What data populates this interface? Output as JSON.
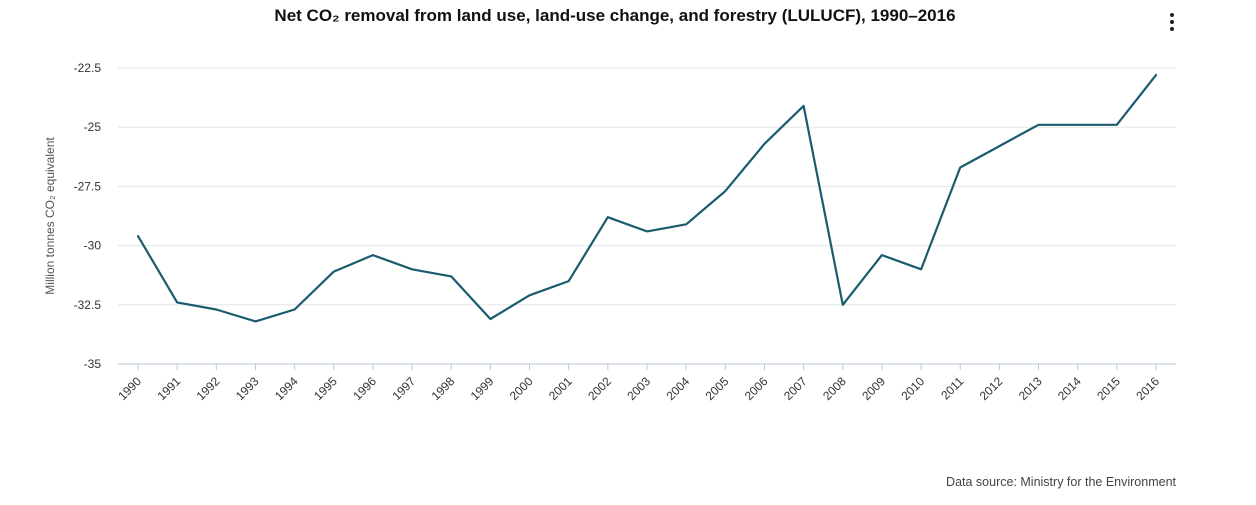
{
  "header": {
    "title": "Net CO₂ removal from land use, land-use change, and forestry (LULUCF), 1990–2016",
    "menu_icon": "more-vertical-icon"
  },
  "footer": {
    "source": "Data source: Ministry for the Environment"
  },
  "chart_data": {
    "type": "line",
    "title": "Net CO₂ removal from land use, land-use change, and forestry (LULUCF), 1990–2016",
    "xlabel": "",
    "ylabel": "Million tonnes CO₂ equivalent",
    "categories": [
      "1990",
      "1991",
      "1992",
      "1993",
      "1994",
      "1995",
      "1996",
      "1997",
      "1998",
      "1999",
      "2000",
      "2001",
      "2002",
      "2003",
      "2004",
      "2005",
      "2006",
      "2007",
      "2008",
      "2009",
      "2010",
      "2011",
      "2012",
      "2013",
      "2014",
      "2015",
      "2016"
    ],
    "series": [
      {
        "values": [
          -29.6,
          -32.4,
          -32.7,
          -33.2,
          -32.7,
          -31.1,
          -30.4,
          -31.0,
          -31.3,
          -33.1,
          -32.1,
          -31.5,
          -28.8,
          -29.4,
          -29.1,
          -27.7,
          -25.7,
          -24.1,
          -32.5,
          -30.4,
          -31.0,
          -26.7,
          -25.8,
          -24.9,
          -24.9,
          -24.9,
          -22.8
        ],
        "color": "#1b5b6e"
      }
    ],
    "yticks": [
      "-22.5",
      "-25",
      "-27.5",
      "-30",
      "-32.5",
      "-35"
    ],
    "ylim": [
      -35,
      -22.5
    ],
    "grid": true,
    "legend": "none"
  }
}
